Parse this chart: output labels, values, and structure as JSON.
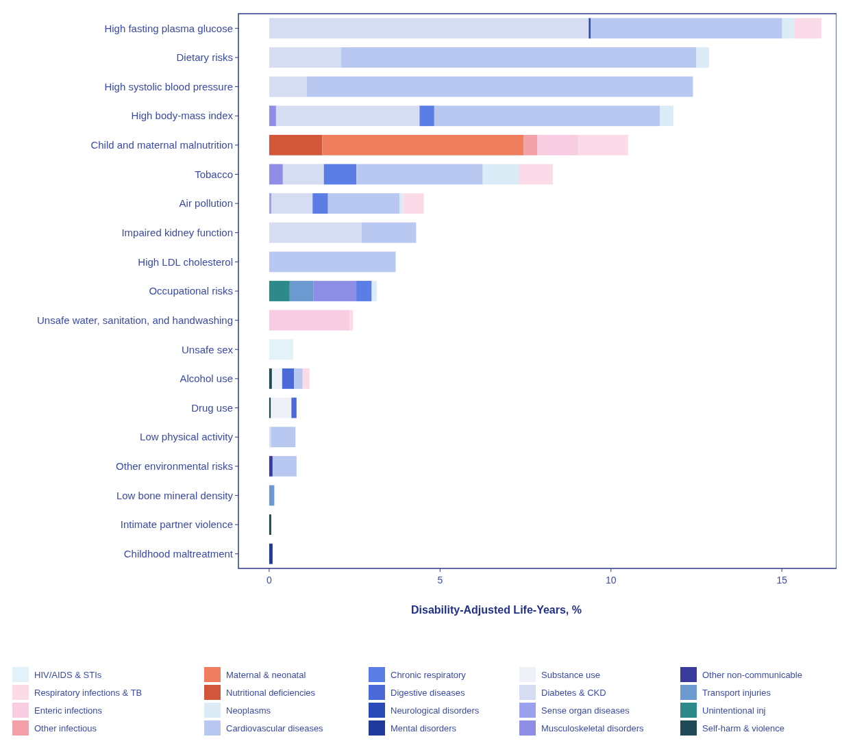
{
  "chart_data": {
    "type": "bar",
    "orientation": "horizontal",
    "stacked": true,
    "xlabel": "Disability-Adjusted Life-Years, %",
    "categories": [
      "High fasting plasma glucose",
      "Dietary risks",
      "High systolic blood pressure",
      "High body-mass index",
      "Child and maternal malnutrition",
      "Tobacco",
      "Air pollution",
      "Impaired kidney function",
      "High LDL cholesterol",
      "Occupational risks",
      "Unsafe water, sanitation, and handwashing",
      "Unsafe sex",
      "Alcohol use",
      "Drug use",
      "Low physical activity",
      "Other environmental risks",
      "Low bone mineral density",
      "Intimate partner violence",
      "Childhood maltreatment"
    ],
    "xlim": [
      -0.9,
      16.6
    ],
    "xticks": [
      0,
      5,
      10,
      15
    ],
    "legend": "bottom",
    "series": [
      {
        "name": "Self-harm & violence",
        "color": "#1f4a55",
        "values": [
          null,
          null,
          null,
          null,
          null,
          null,
          null,
          null,
          null,
          null,
          null,
          null,
          0.08,
          0.05,
          null,
          null,
          null,
          0.06,
          null
        ]
      },
      {
        "name": "Unintentional inj",
        "color": "#2e8a8a",
        "values": [
          null,
          null,
          null,
          null,
          null,
          null,
          null,
          null,
          null,
          0.6,
          null,
          null,
          null,
          null,
          null,
          null,
          null,
          null,
          null
        ]
      },
      {
        "name": "Transport injuries",
        "color": "#6a9ad0",
        "values": [
          null,
          null,
          null,
          null,
          null,
          null,
          null,
          null,
          null,
          0.7,
          null,
          null,
          null,
          null,
          null,
          null,
          0.15,
          null,
          null
        ]
      },
      {
        "name": "Other non-communicable",
        "color": "#3a3a9c",
        "values": [
          null,
          null,
          null,
          null,
          null,
          null,
          null,
          null,
          null,
          null,
          null,
          null,
          null,
          null,
          null,
          0.1,
          null,
          null,
          null
        ]
      },
      {
        "name": "Musculoskeletal disorders",
        "color": "#8f8ee6",
        "values": [
          null,
          null,
          null,
          0.2,
          null,
          0.4,
          null,
          null,
          null,
          1.25,
          null,
          null,
          null,
          null,
          null,
          null,
          null,
          null,
          null
        ]
      },
      {
        "name": "Sense organ diseases",
        "color": "#9aa2ee",
        "values": [
          null,
          null,
          null,
          null,
          null,
          null,
          0.07,
          null,
          null,
          null,
          null,
          null,
          null,
          null,
          null,
          null,
          null,
          null,
          null
        ]
      },
      {
        "name": "Diabetes & CKD",
        "color": "#d6dcf2",
        "values": [
          9.35,
          2.1,
          1.1,
          4.2,
          null,
          1.2,
          1.2,
          2.7,
          null,
          null,
          null,
          null,
          null,
          null,
          0.05,
          null,
          null,
          null,
          null
        ]
      },
      {
        "name": "Substance use",
        "color": "#eef2f8",
        "values": [
          null,
          null,
          null,
          null,
          null,
          null,
          null,
          null,
          null,
          null,
          null,
          null,
          0.3,
          0.6,
          null,
          null,
          null,
          null,
          null
        ]
      },
      {
        "name": "Mental disorders",
        "color": "#1f3a9a",
        "values": [
          null,
          null,
          null,
          null,
          null,
          null,
          null,
          null,
          null,
          null,
          null,
          null,
          null,
          null,
          null,
          null,
          null,
          null,
          0.1
        ]
      },
      {
        "name": "Neurological disorders",
        "color": "#2a4ab8",
        "values": [
          0.06,
          null,
          null,
          null,
          null,
          null,
          null,
          null,
          null,
          null,
          null,
          null,
          null,
          null,
          null,
          null,
          null,
          null,
          null
        ]
      },
      {
        "name": "Digestive diseases",
        "color": "#4a6ad8",
        "values": [
          null,
          null,
          null,
          null,
          null,
          null,
          null,
          null,
          null,
          null,
          null,
          null,
          0.35,
          0.15,
          null,
          null,
          null,
          null,
          null
        ]
      },
      {
        "name": "Chronic respiratory",
        "color": "#5a7de6",
        "values": [
          null,
          null,
          null,
          0.43,
          null,
          0.95,
          0.45,
          null,
          null,
          0.45,
          null,
          null,
          null,
          null,
          null,
          null,
          null,
          null,
          null
        ]
      },
      {
        "name": "Cardiovascular diseases",
        "color": "#b8c8f0",
        "values": [
          5.6,
          10.4,
          11.3,
          6.6,
          null,
          3.7,
          2.1,
          1.6,
          3.7,
          null,
          null,
          null,
          0.25,
          null,
          0.72,
          0.7,
          null,
          null,
          null
        ]
      },
      {
        "name": "Neoplasms",
        "color": "#dcecf6",
        "values": [
          0.35,
          0.37,
          null,
          0.4,
          null,
          1.05,
          0.1,
          null,
          null,
          0.15,
          null,
          null,
          null,
          null,
          null,
          null,
          null,
          null,
          null
        ]
      },
      {
        "name": "Nutritional deficiencies",
        "color": "#d2563a",
        "values": [
          null,
          null,
          null,
          null,
          1.55,
          null,
          null,
          null,
          null,
          null,
          null,
          null,
          null,
          null,
          null,
          null,
          null,
          null,
          null
        ]
      },
      {
        "name": "Maternal & neonatal",
        "color": "#f07e5e",
        "values": [
          null,
          null,
          null,
          null,
          5.9,
          null,
          null,
          null,
          null,
          null,
          null,
          null,
          null,
          null,
          null,
          null,
          null,
          null,
          null
        ]
      },
      {
        "name": "Other infectious",
        "color": "#f4a0a8",
        "values": [
          null,
          null,
          null,
          null,
          0.4,
          null,
          null,
          null,
          null,
          null,
          null,
          null,
          null,
          null,
          null,
          null,
          null,
          null,
          null
        ]
      },
      {
        "name": "Enteric infections",
        "color": "#f8cde2",
        "values": [
          null,
          null,
          null,
          null,
          1.2,
          null,
          null,
          null,
          null,
          null,
          2.35,
          null,
          null,
          null,
          null,
          null,
          null,
          null,
          null
        ]
      },
      {
        "name": "Respiratory infections & TB",
        "color": "#fbdbe8",
        "values": [
          0.8,
          null,
          null,
          null,
          1.45,
          1.0,
          0.6,
          null,
          null,
          null,
          0.1,
          null,
          0.2,
          null,
          null,
          null,
          null,
          null,
          null
        ]
      },
      {
        "name": "HIV/AIDS & STIs",
        "color": "#e3f1f8",
        "values": [
          null,
          null,
          null,
          null,
          null,
          null,
          null,
          null,
          null,
          null,
          null,
          0.7,
          null,
          null,
          null,
          null,
          null,
          null,
          null
        ]
      }
    ]
  }
}
